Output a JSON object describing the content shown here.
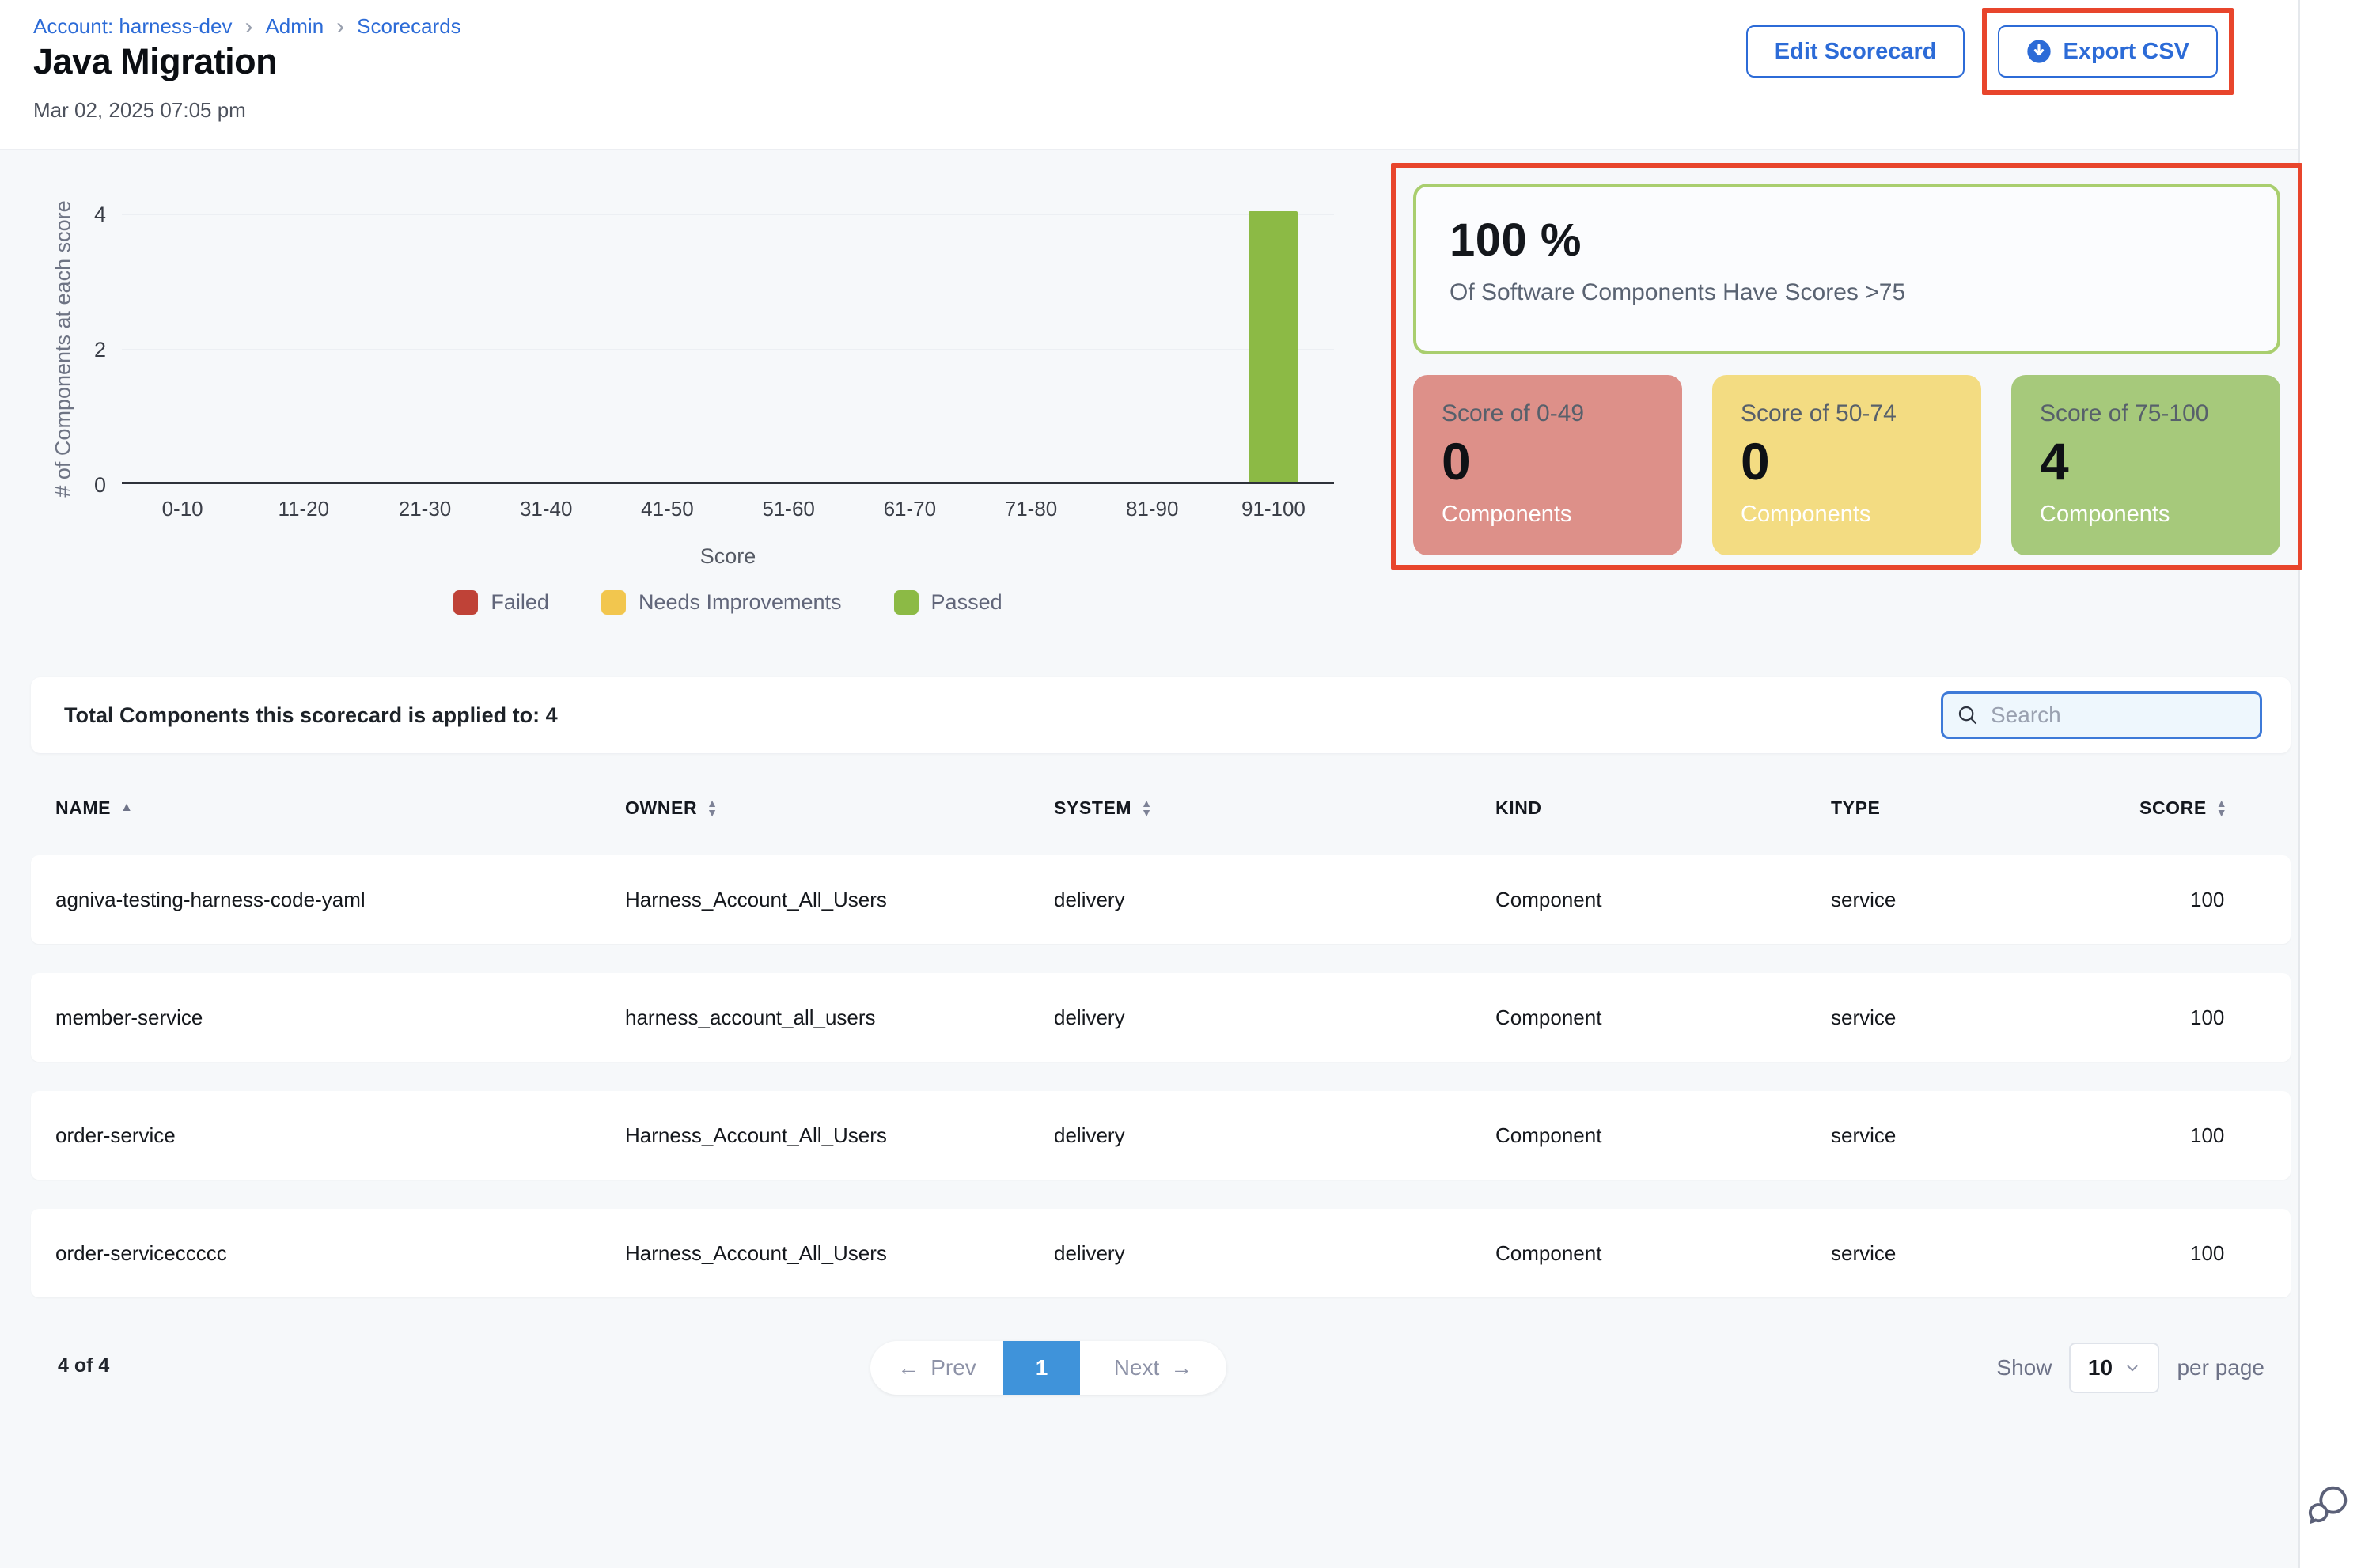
{
  "breadcrumb": {
    "account": "Account: harness-dev",
    "admin": "Admin",
    "scorecards": "Scorecards",
    "separator": "›"
  },
  "header": {
    "title": "Java Migration",
    "timestamp": "Mar 02, 2025 07:05 pm",
    "edit_button": "Edit Scorecard",
    "export_button": "Export CSV"
  },
  "chart_data": {
    "type": "bar",
    "categories": [
      "0-10",
      "11-20",
      "21-30",
      "31-40",
      "41-50",
      "51-60",
      "61-70",
      "71-80",
      "81-90",
      "91-100"
    ],
    "values": [
      0,
      0,
      0,
      0,
      0,
      0,
      0,
      0,
      0,
      4
    ],
    "title": "",
    "xlabel": "Score",
    "ylabel": "# of Components at each score",
    "yticks": [
      0,
      2,
      4
    ],
    "ylim": [
      0,
      4
    ],
    "grid": true,
    "legend_position": "bottom",
    "legend": [
      {
        "label": "Failed",
        "color": "#bf4237",
        "range_max": 49
      },
      {
        "label": "Needs Improvements",
        "color": "#f2c64e",
        "range_max": 74
      },
      {
        "label": "Passed",
        "color": "#8cba45",
        "range_max": 100
      }
    ]
  },
  "summary": {
    "percent": "100 %",
    "caption": "Of Software Components Have Scores >75",
    "cards": [
      {
        "title": "Score of 0-49",
        "value": "0",
        "label": "Components",
        "bg": "#dd9089"
      },
      {
        "title": "Score of 50-74",
        "value": "0",
        "label": "Components",
        "bg": "#f3dc82"
      },
      {
        "title": "Score of 75-100",
        "value": "4",
        "label": "Components",
        "bg": "#a6c97b"
      }
    ]
  },
  "table": {
    "total_label": "Total Components this scorecard is applied to: 4",
    "search_placeholder": "Search",
    "columns": [
      {
        "label": "NAME",
        "sort": "asc"
      },
      {
        "label": "OWNER",
        "sort": "both"
      },
      {
        "label": "SYSTEM",
        "sort": "both"
      },
      {
        "label": "KIND",
        "sort": "none"
      },
      {
        "label": "TYPE",
        "sort": "none"
      },
      {
        "label": "SCORE",
        "sort": "both"
      }
    ],
    "rows": [
      {
        "name": "agniva-testing-harness-code-yaml",
        "owner": "Harness_Account_All_Users",
        "system": "delivery",
        "kind": "Component",
        "type": "service",
        "score": "100"
      },
      {
        "name": "member-service",
        "owner": "harness_account_all_users",
        "system": "delivery",
        "kind": "Component",
        "type": "service",
        "score": "100"
      },
      {
        "name": "order-service",
        "owner": "Harness_Account_All_Users",
        "system": "delivery",
        "kind": "Component",
        "type": "service",
        "score": "100"
      },
      {
        "name": "order-serviceccccc",
        "owner": "Harness_Account_All_Users",
        "system": "delivery",
        "kind": "Component",
        "type": "service",
        "score": "100"
      }
    ]
  },
  "pagination": {
    "count": "4 of 4",
    "prev_arrow": "←",
    "prev_label": "Prev",
    "page": "1",
    "next_label": "Next",
    "next_arrow": "→",
    "show_label": "Show",
    "page_size": "10",
    "per_page_label": "per page"
  },
  "colors": {
    "primary_blue": "#2c6bd7",
    "annotation_red": "#e8452c",
    "active_page_blue": "#3f93da",
    "percent_border_green": "#a9ce6e",
    "section_bg": "#f6f8fa"
  }
}
